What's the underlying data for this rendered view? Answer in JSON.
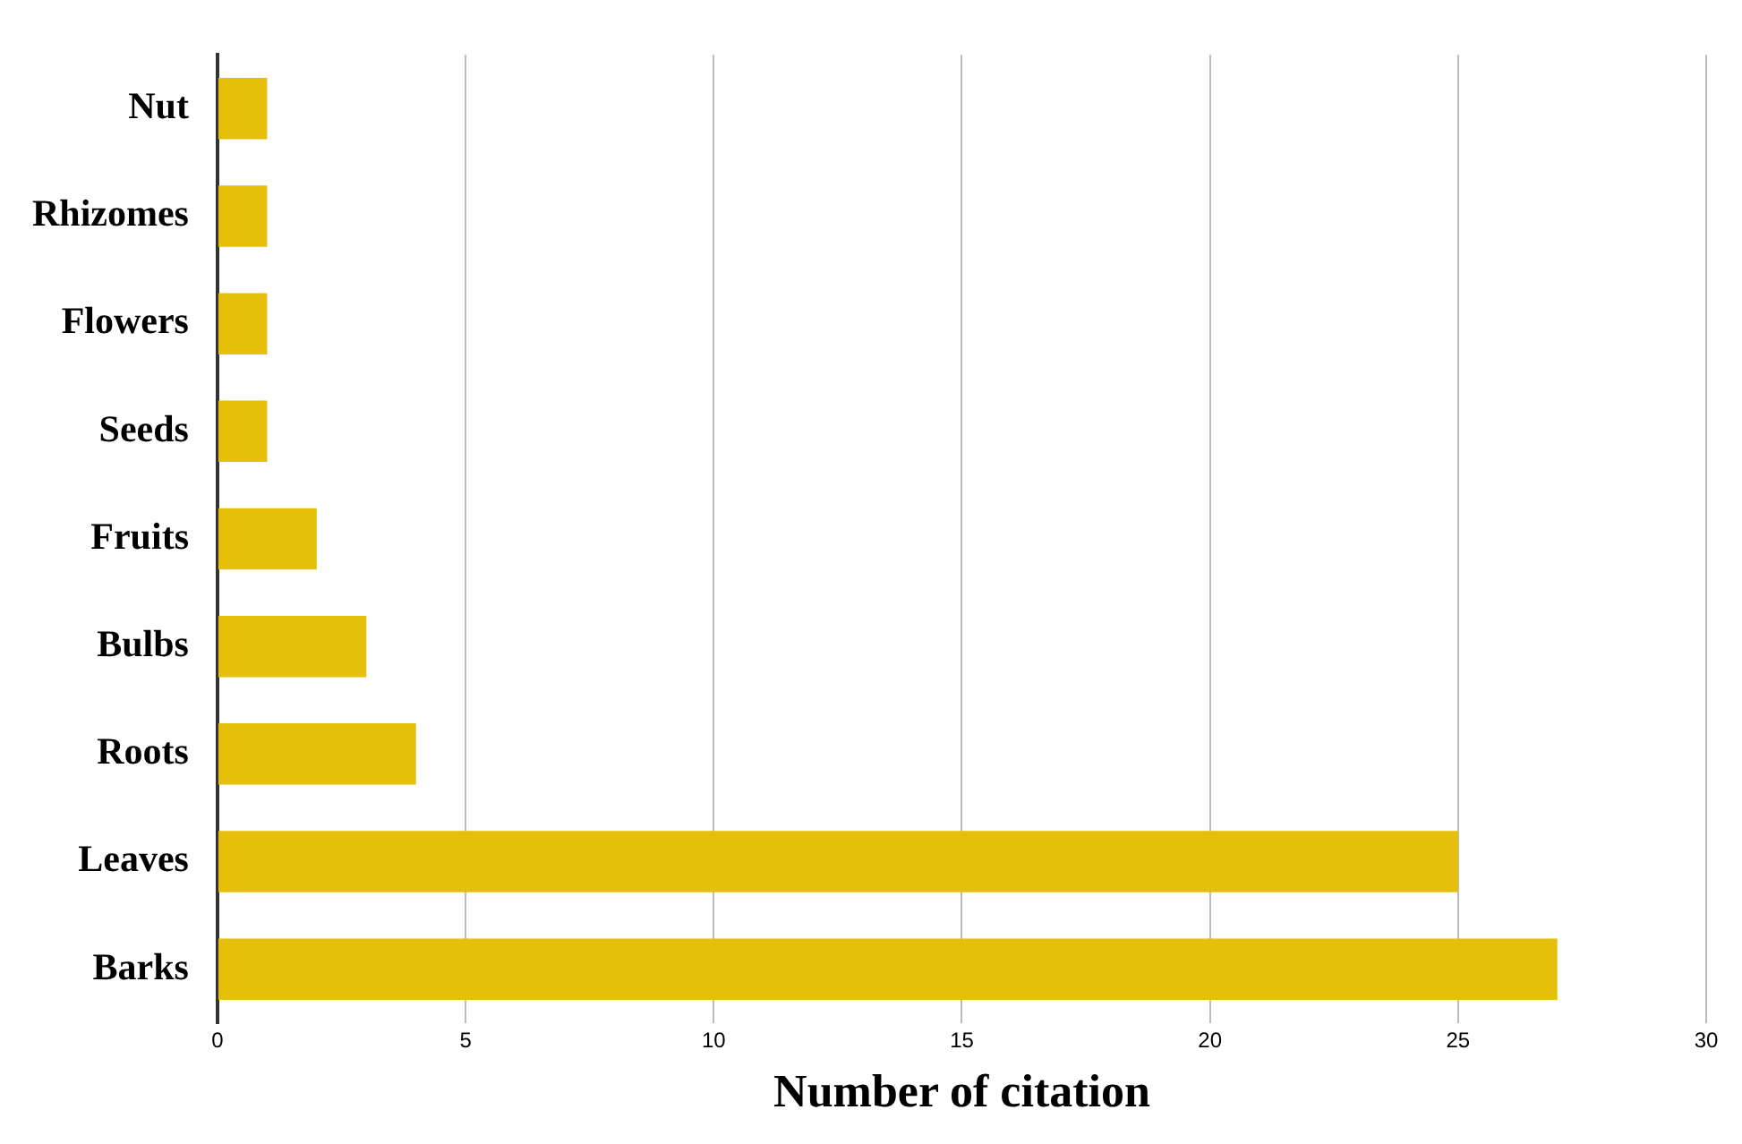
{
  "chart_data": {
    "type": "bar",
    "orientation": "horizontal",
    "xlabel": "Number of citation",
    "categories": [
      "Nut",
      "Rhizomes",
      "Flowers",
      "Seeds",
      "Fruits",
      "Bulbs",
      "Roots",
      "Leaves",
      "Barks"
    ],
    "values": [
      1,
      1,
      1,
      1,
      2,
      3,
      4,
      25,
      27
    ],
    "color": "#e6bf0a",
    "xlim": [
      0,
      30
    ],
    "xticks": [
      0,
      5,
      10,
      15,
      20,
      25,
      30
    ],
    "grid": "x",
    "legend": false
  }
}
